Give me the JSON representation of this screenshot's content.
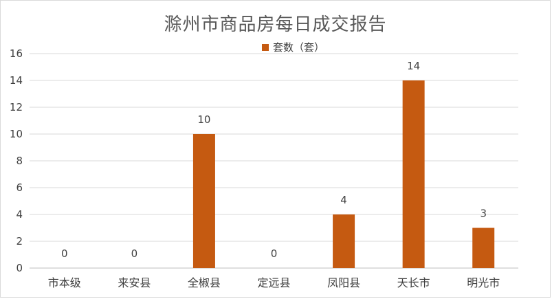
{
  "chart_data": {
    "type": "bar",
    "title": "滁州市商品房每日成交报告",
    "categories": [
      "市本级",
      "来安县",
      "全椒县",
      "定远县",
      "凤阳县",
      "天长市",
      "明光市"
    ],
    "series": [
      {
        "name": "套数（套）",
        "values": [
          0,
          0,
          10,
          0,
          4,
          14,
          3
        ],
        "color": "#c55a11"
      }
    ],
    "data_labels": [
      "0",
      "0",
      "10",
      "0",
      "4",
      "14",
      "3"
    ],
    "ylim": [
      0,
      16
    ],
    "yticks": [
      "0",
      "2",
      "4",
      "6",
      "8",
      "10",
      "12",
      "14",
      "16"
    ],
    "grid": true,
    "legend_position": "top-center"
  }
}
